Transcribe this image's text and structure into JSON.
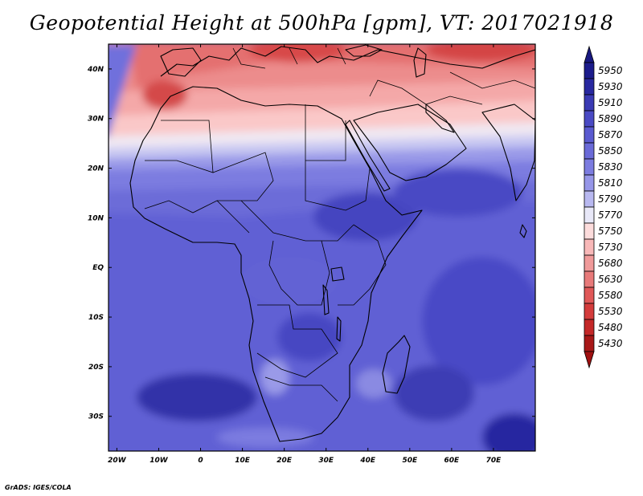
{
  "title": "Geopotential Height at 500hPa [gpm], VT: 2017021918",
  "credit": "GrADS: IGES/COLA",
  "map": {
    "lon_range": [
      -22,
      80
    ],
    "lat_range": [
      -37,
      45
    ],
    "lon_ticks": [
      {
        "value": -20,
        "label": "20W"
      },
      {
        "value": -10,
        "label": "10W"
      },
      {
        "value": 0,
        "label": "0"
      },
      {
        "value": 10,
        "label": "10E"
      },
      {
        "value": 20,
        "label": "20E"
      },
      {
        "value": 30,
        "label": "30E"
      },
      {
        "value": 40,
        "label": "40E"
      },
      {
        "value": 50,
        "label": "50E"
      },
      {
        "value": 60,
        "label": "60E"
      },
      {
        "value": 70,
        "label": "70E"
      }
    ],
    "lat_ticks": [
      {
        "value": 40,
        "label": "40N"
      },
      {
        "value": 30,
        "label": "30N"
      },
      {
        "value": 20,
        "label": "20N"
      },
      {
        "value": 10,
        "label": "10N"
      },
      {
        "value": 0,
        "label": "EQ"
      },
      {
        "value": -10,
        "label": "10S"
      },
      {
        "value": -20,
        "label": "20S"
      },
      {
        "value": -30,
        "label": "30S"
      }
    ]
  },
  "colorbar": {
    "levels": [
      "5950",
      "5930",
      "5910",
      "5890",
      "5870",
      "5850",
      "5830",
      "5810",
      "5790",
      "5770",
      "5750",
      "5730",
      "5680",
      "5630",
      "5580",
      "5530",
      "5480",
      "5430"
    ],
    "colors": [
      "#1c1c8c",
      "#2828a0",
      "#3a3ab4",
      "#4a4ac4",
      "#5a5ad0",
      "#6a6ad8",
      "#7c7ce0",
      "#9696e8",
      "#b8b8f0",
      "#e8e8f8",
      "#fcdcdc",
      "#f8b8b8",
      "#f09a9a",
      "#e87a7a",
      "#e05858",
      "#d43c3c",
      "#c42828",
      "#a81818"
    ],
    "cap_top_color": "#181880",
    "cap_bottom_color": "#a01010"
  },
  "palette": {
    "coast": "#000000",
    "south_base": "#5a5ad0"
  }
}
